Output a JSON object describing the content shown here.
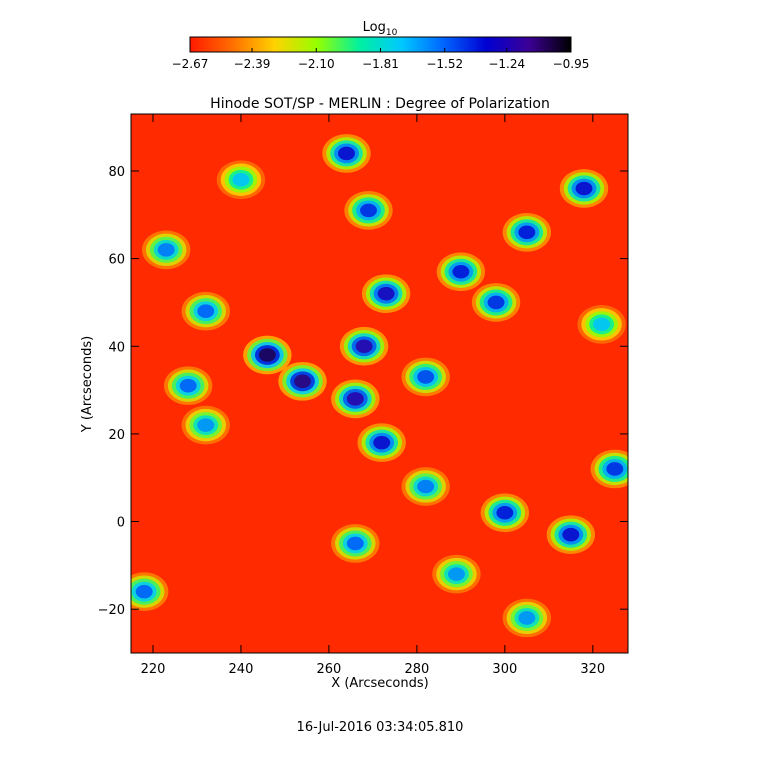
{
  "chart_data": {
    "type": "heatmap",
    "title": "Hinode SOT/SP - MERLIN : Degree of Polarization",
    "xlabel": "X (Arcseconds)",
    "ylabel": "Y (Arcseconds)",
    "xlim": [
      215,
      328
    ],
    "ylim": [
      -30,
      93
    ],
    "x_ticks": [
      220,
      240,
      260,
      280,
      300,
      320
    ],
    "y_ticks": [
      -20,
      0,
      20,
      40,
      60,
      80
    ],
    "x_tick_labels": [
      "220",
      "240",
      "260",
      "280",
      "300",
      "320"
    ],
    "y_tick_labels": [
      "−20",
      "0",
      "20",
      "40",
      "60",
      "80"
    ],
    "grid": false,
    "colorbar": {
      "label_base": "Log",
      "label_sub": "10",
      "orientation": "horizontal",
      "placement": "top",
      "range": [
        -2.67,
        -0.95
      ],
      "ticks": [
        -2.67,
        -2.39,
        -2.1,
        -1.81,
        -1.52,
        -1.24,
        -0.95
      ],
      "tick_labels": [
        "−2.67",
        "−2.39",
        "−2.10",
        "−1.81",
        "−1.52",
        "−1.24",
        "−0.95"
      ],
      "colormap": "rainbow-reversed",
      "color_stops": [
        "#ff1a00",
        "#ff6e00",
        "#ffd200",
        "#96ff00",
        "#00f0a0",
        "#00c8ff",
        "#0064ff",
        "#0000d2",
        "#3c0096",
        "#000000"
      ]
    },
    "features": [
      {
        "x": 246,
        "y": 38,
        "level": -1.05
      },
      {
        "x": 254,
        "y": 32,
        "level": -1.1
      },
      {
        "x": 268,
        "y": 40,
        "level": -1.2
      },
      {
        "x": 273,
        "y": 52,
        "level": -1.25
      },
      {
        "x": 266,
        "y": 28,
        "level": -1.2
      },
      {
        "x": 272,
        "y": 18,
        "level": -1.3
      },
      {
        "x": 264,
        "y": 84,
        "level": -1.3
      },
      {
        "x": 269,
        "y": 71,
        "level": -1.4
      },
      {
        "x": 290,
        "y": 57,
        "level": -1.35
      },
      {
        "x": 305,
        "y": 66,
        "level": -1.35
      },
      {
        "x": 318,
        "y": 76,
        "level": -1.3
      },
      {
        "x": 298,
        "y": 50,
        "level": -1.4
      },
      {
        "x": 282,
        "y": 33,
        "level": -1.45
      },
      {
        "x": 282,
        "y": 8,
        "level": -1.55
      },
      {
        "x": 300,
        "y": 2,
        "level": -1.35
      },
      {
        "x": 315,
        "y": -3,
        "level": -1.3
      },
      {
        "x": 325,
        "y": 12,
        "level": -1.4
      },
      {
        "x": 232,
        "y": 48,
        "level": -1.5
      },
      {
        "x": 228,
        "y": 31,
        "level": -1.5
      },
      {
        "x": 223,
        "y": 62,
        "level": -1.55
      },
      {
        "x": 232,
        "y": 22,
        "level": -1.6
      },
      {
        "x": 218,
        "y": -16,
        "level": -1.5
      },
      {
        "x": 289,
        "y": -12,
        "level": -1.6
      },
      {
        "x": 266,
        "y": -5,
        "level": -1.5
      },
      {
        "x": 305,
        "y": -22,
        "level": -1.6
      },
      {
        "x": 240,
        "y": 78,
        "level": -1.7
      },
      {
        "x": 322,
        "y": 45,
        "level": -1.7
      }
    ]
  },
  "footer": {
    "timestamp": "16-Jul-2016 03:34:05.810"
  }
}
